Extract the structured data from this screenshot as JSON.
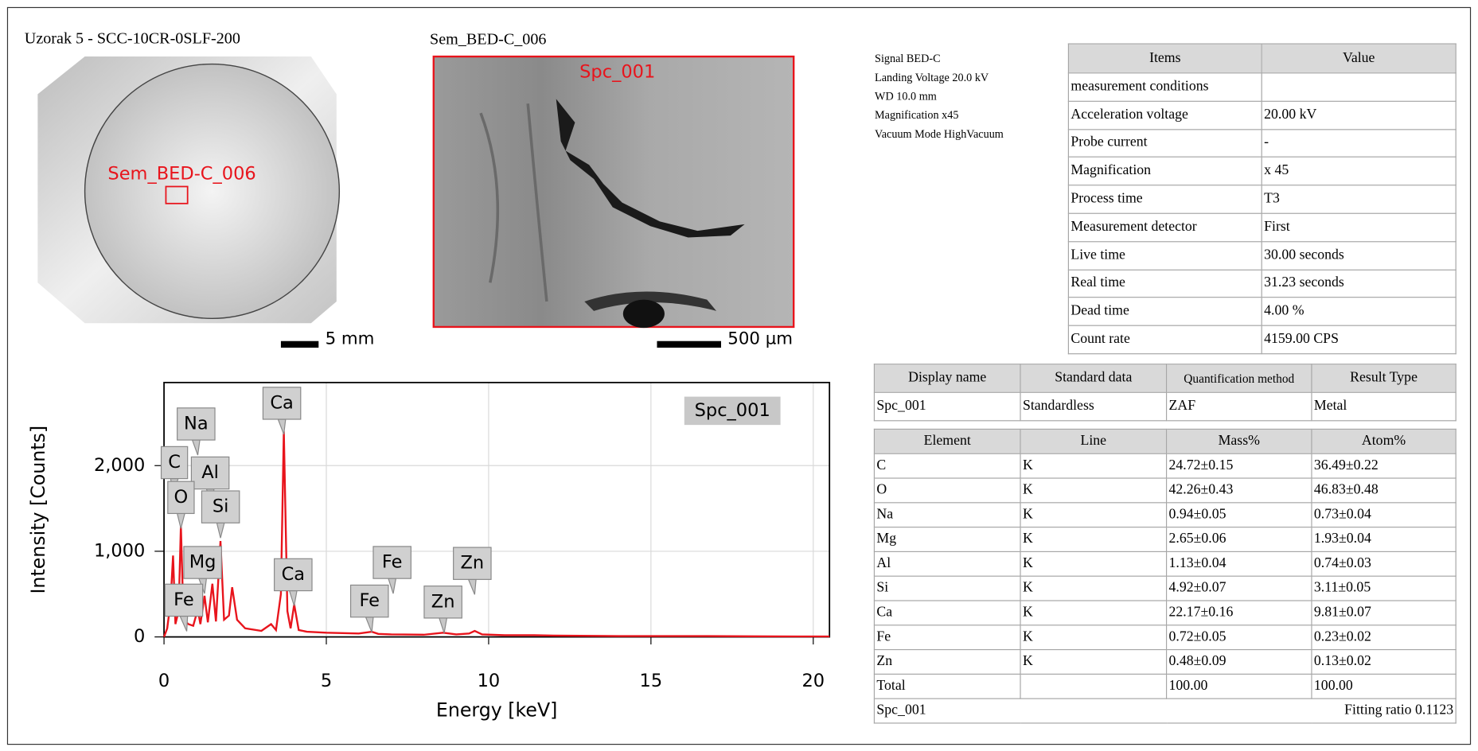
{
  "sample_title": "Uzorak 5 - SCC-10CR-0SLF-200",
  "sample_label": "Sem_BED-C_006",
  "sample_scale": "5 mm",
  "image_title": "Sem_BED-C_006",
  "image_label": "Spc_001",
  "image_scale": "500 µm",
  "conditions": [
    "Signal BED-C",
    "Landing Voltage 20.0 kV",
    "WD 10.0 mm",
    "Magnification x45",
    "Vacuum Mode HighVacuum"
  ],
  "measurement_table": {
    "header": [
      "Items",
      "Value"
    ],
    "rows": [
      [
        "measurement conditions",
        ""
      ],
      [
        "Acceleration voltage",
        "20.00 kV"
      ],
      [
        "Probe current",
        "-"
      ],
      [
        "Magnification",
        "x 45"
      ],
      [
        "Process time",
        "T3"
      ],
      [
        "Measurement detector",
        "First"
      ],
      [
        "Live time",
        "30.00 seconds"
      ],
      [
        "Real time",
        "31.23 seconds"
      ],
      [
        "Dead time",
        "4.00 %"
      ],
      [
        "Count rate",
        "4159.00 CPS"
      ]
    ]
  },
  "quant_table": {
    "header": [
      "Display name",
      "Standard data",
      "Quantification method",
      "Result Type"
    ],
    "rows": [
      [
        "Spc_001",
        "Standardless",
        "ZAF",
        "Metal"
      ]
    ]
  },
  "results_table": {
    "header": [
      "Element",
      "Line",
      "Mass%",
      "Atom%"
    ],
    "rows": [
      [
        "C",
        "K",
        "24.72±0.15",
        "36.49±0.22"
      ],
      [
        "O",
        "K",
        "42.26±0.43",
        "46.83±0.48"
      ],
      [
        "Na",
        "K",
        "0.94±0.05",
        "0.73±0.04"
      ],
      [
        "Mg",
        "K",
        "2.65±0.06",
        "1.93±0.04"
      ],
      [
        "Al",
        "K",
        "1.13±0.04",
        "0.74±0.03"
      ],
      [
        "Si",
        "K",
        "4.92±0.07",
        "3.11±0.05"
      ],
      [
        "Ca",
        "K",
        "22.17±0.16",
        "9.81±0.07"
      ],
      [
        "Fe",
        "K",
        "0.72±0.05",
        "0.23±0.02"
      ],
      [
        "Zn",
        "K",
        "0.48±0.09",
        "0.13±0.02"
      ],
      [
        "Total",
        "",
        "100.00",
        "100.00"
      ]
    ],
    "footer": [
      "Spc_001",
      "Fitting ratio 0.1123"
    ]
  },
  "chart_data": {
    "type": "line",
    "xlabel": "Energy [keV]",
    "ylabel": "Intensity [Counts]",
    "x": [
      0,
      0.1,
      0.2,
      0.28,
      0.35,
      0.45,
      0.52,
      0.6,
      0.75,
      0.9,
      1.04,
      1.12,
      1.25,
      1.35,
      1.49,
      1.6,
      1.74,
      1.85,
      2.0,
      2.1,
      2.25,
      2.5,
      3.0,
      3.3,
      3.45,
      3.6,
      3.69,
      3.8,
      3.9,
      4.01,
      4.15,
      4.4,
      5,
      6,
      6.4,
      6.6,
      7,
      8,
      8.6,
      9,
      9.4,
      9.57,
      9.8,
      10.5,
      11.4,
      12,
      14,
      16,
      18,
      19.5,
      20.5
    ],
    "series": [
      {
        "name": "Spc_001",
        "color": "#e8141c",
        "values": [
          0,
          100,
          400,
          950,
          150,
          300,
          1300,
          200,
          150,
          130,
          320,
          150,
          480,
          170,
          620,
          180,
          1120,
          200,
          250,
          580,
          200,
          100,
          70,
          150,
          80,
          500,
          2400,
          300,
          100,
          380,
          80,
          60,
          50,
          40,
          60,
          35,
          30,
          25,
          50,
          30,
          40,
          70,
          30,
          20,
          20,
          15,
          10,
          10,
          8,
          5,
          5
        ]
      }
    ],
    "xlim": [
      0,
      20.5
    ],
    "ylim": [
      0,
      2970
    ],
    "xticks": [
      0,
      5,
      10,
      15,
      20
    ],
    "yticks": [
      0,
      {
        "value": 1000,
        "label": "1,000"
      },
      {
        "value": 2000,
        "label": "2,000"
      }
    ],
    "grid": true,
    "peak_labels": [
      {
        "text": "Ca",
        "x": 3.69
      },
      {
        "text": "Na",
        "x": 1.04
      },
      {
        "text": "C",
        "x": 0.28
      },
      {
        "text": "Al",
        "x": 1.49
      },
      {
        "text": "O",
        "x": 0.52
      },
      {
        "text": "Si",
        "x": 1.74
      },
      {
        "text": "Mg",
        "x": 1.25
      },
      {
        "text": "Ca",
        "x": 4.01
      },
      {
        "text": "Fe",
        "x": 0.7
      },
      {
        "text": "Fe",
        "x": 7.06
      },
      {
        "text": "Fe",
        "x": 6.4
      },
      {
        "text": "Zn",
        "x": 8.63
      },
      {
        "text": "Zn",
        "x": 9.57
      }
    ]
  }
}
